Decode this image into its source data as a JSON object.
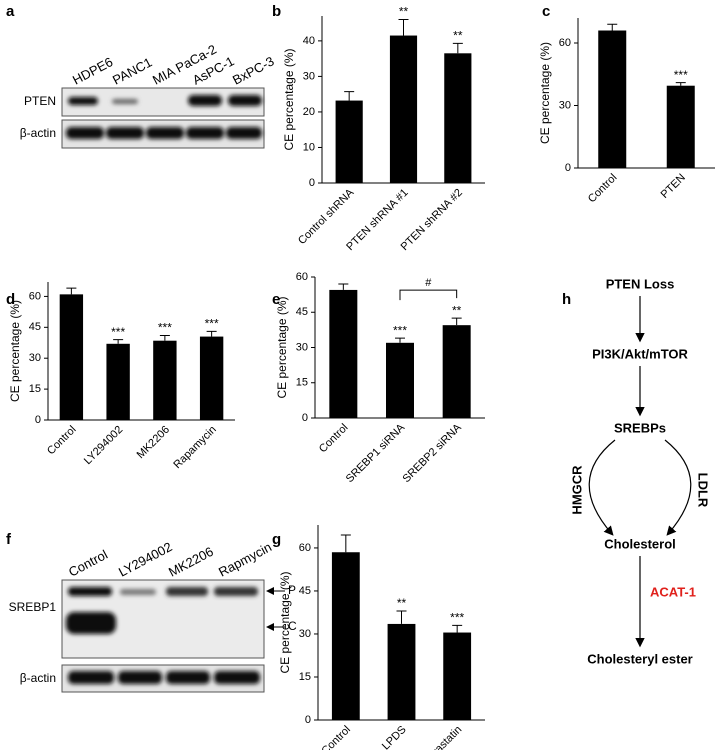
{
  "panel_labels": {
    "a": "a",
    "f": "f",
    "h": "h"
  },
  "blot_a": {
    "lanes": [
      "HDPE6",
      "PANC1",
      "MIA PaCa-2",
      "AsPC-1",
      "BxPC-3"
    ],
    "rows": [
      "PTEN",
      "β-actin"
    ]
  },
  "blot_f": {
    "lanes": [
      "Control",
      "LY294002",
      "MK2206",
      "Rapmycin"
    ],
    "rows": [
      "SREBP1",
      "β-actin"
    ],
    "markers": [
      "P",
      "C"
    ]
  },
  "diagram": {
    "nodes": [
      "PTEN Loss",
      "PI3K/Akt/mTOR",
      "SREBPs",
      "Cholesterol",
      "Cholesteryl ester"
    ],
    "edge_labels": [
      "HMGCR",
      "LDLR",
      "ACAT-1"
    ]
  },
  "chart_data": [
    {
      "type": "bar",
      "label": "b",
      "y_label": "CE percentage (%)",
      "categories": [
        "Control shRNA",
        "PTEN shRNA #1",
        "PTEN shRNA #2"
      ],
      "values": [
        23.2,
        41.5,
        36.5
      ],
      "errors": [
        2.5,
        4.5,
        2.8
      ],
      "significance": [
        null,
        "**",
        "**"
      ],
      "color": "#000000",
      "ylim": [
        0,
        47
      ],
      "yticks": [
        0,
        10,
        20,
        30,
        40
      ]
    },
    {
      "type": "bar",
      "label": "c",
      "y_label": "CE percentage (%)",
      "categories": [
        "Control",
        "PTEN"
      ],
      "values": [
        66,
        39.5
      ],
      "errors": [
        3,
        1.5
      ],
      "significance": [
        null,
        "***"
      ],
      "color": "#000000",
      "ylim": [
        0,
        72
      ],
      "yticks": [
        0,
        30,
        60
      ]
    },
    {
      "type": "bar",
      "label": "d",
      "y_label": "CE percentage (%)",
      "categories": [
        "Control",
        "LY294002",
        "MK2206",
        "Rapamycin"
      ],
      "values": [
        61,
        37,
        38.5,
        40.5
      ],
      "errors": [
        3,
        2,
        2.5,
        2.5
      ],
      "significance": [
        null,
        "***",
        "***",
        "***"
      ],
      "color": "#000000",
      "ylim": [
        0,
        67
      ],
      "yticks": [
        0,
        15,
        30,
        45,
        60
      ]
    },
    {
      "type": "bar",
      "label": "e",
      "y_label": "CE percentage (%)",
      "categories": [
        "Control",
        "SREBP1 siRNA",
        "SREBP2 siRNA"
      ],
      "values": [
        54.5,
        32,
        39.5
      ],
      "errors": [
        2.5,
        2,
        3
      ],
      "significance": [
        null,
        "***",
        "**"
      ],
      "bracket_label": "#",
      "color": "#000000",
      "ylim": [
        0,
        60
      ],
      "yticks": [
        0,
        15,
        30,
        45,
        60
      ]
    },
    {
      "type": "bar",
      "label": "g",
      "y_label": "CE percentage (%)",
      "categories": [
        "Control",
        "LPDS",
        "Simvastatin"
      ],
      "values": [
        58.5,
        33.5,
        30.5
      ],
      "errors": [
        6,
        4.5,
        2.5
      ],
      "significance": [
        null,
        "**",
        "***"
      ],
      "color": "#000000",
      "ylim": [
        0,
        68
      ],
      "yticks": [
        0,
        15,
        30,
        45,
        60
      ]
    }
  ]
}
